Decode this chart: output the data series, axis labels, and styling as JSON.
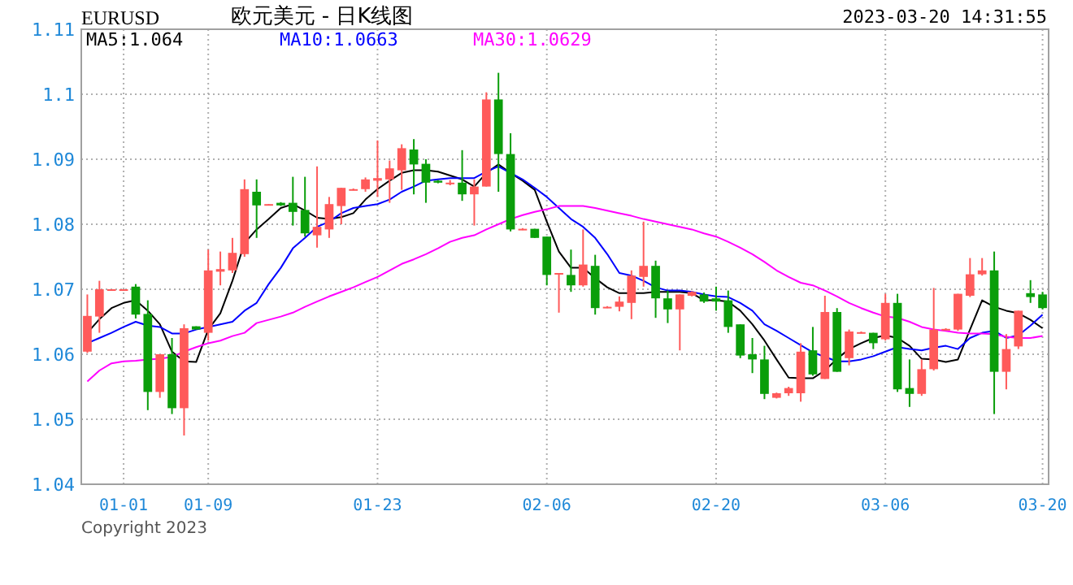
{
  "chart_data": {
    "type": "candlestick",
    "title": "欧元美元 - 日K线图",
    "annotations": [
      "EURUSD",
      "2023-03-20 14:31:55",
      "Copyright 2023"
    ],
    "categories": [
      null,
      null,
      null,
      "01-01",
      null,
      null,
      null,
      null,
      null,
      null,
      "01-09",
      null,
      null,
      null,
      null,
      null,
      null,
      null,
      null,
      null,
      null,
      null,
      null,
      null,
      "01-23",
      null,
      null,
      null,
      null,
      null,
      null,
      null,
      null,
      null,
      null,
      null,
      null,
      null,
      "02-06",
      null,
      null,
      null,
      null,
      null,
      null,
      null,
      null,
      null,
      null,
      null,
      null,
      null,
      "02-20",
      null,
      null,
      null,
      null,
      null,
      null,
      null,
      null,
      null,
      null,
      null,
      null,
      null,
      "03-06",
      null,
      null,
      null,
      null,
      null,
      null,
      null,
      null,
      null,
      null,
      null,
      null,
      "03-20"
    ],
    "ohlc": [
      [
        1.0604,
        1.0692,
        1.0602,
        1.0659
      ],
      [
        1.0658,
        1.0713,
        1.0633,
        1.07
      ],
      [
        1.0699,
        1.07,
        1.0699,
        1.07
      ],
      [
        1.0699,
        1.07,
        1.0699,
        1.07
      ],
      [
        1.0704,
        1.0708,
        1.0655,
        1.0661
      ],
      [
        1.0662,
        1.0683,
        1.0514,
        1.0542
      ],
      [
        1.0542,
        1.06,
        1.0533,
        1.06
      ],
      [
        1.06,
        1.0625,
        1.0508,
        1.0517
      ],
      [
        1.0517,
        1.0646,
        1.0475,
        1.064
      ],
      [
        1.0643,
        1.0643,
        1.0638,
        1.0638
      ],
      [
        1.0633,
        1.0761,
        1.0621,
        1.0729
      ],
      [
        1.0727,
        1.0758,
        1.0706,
        1.0731
      ],
      [
        1.0729,
        1.0779,
        1.0725,
        1.0756
      ],
      [
        1.0754,
        1.0869,
        1.075,
        1.0854
      ],
      [
        1.085,
        1.0869,
        1.0779,
        1.0829
      ],
      [
        1.083,
        1.0831,
        1.0829,
        1.0831
      ],
      [
        1.0833,
        1.0834,
        1.0828,
        1.0829
      ],
      [
        1.0833,
        1.0873,
        1.0798,
        1.0819
      ],
      [
        1.0822,
        1.0873,
        1.0781,
        1.0786
      ],
      [
        1.0783,
        1.0889,
        1.0764,
        1.0796
      ],
      [
        1.0792,
        1.0842,
        1.0779,
        1.0831
      ],
      [
        1.0828,
        1.0856,
        1.08,
        1.0856
      ],
      [
        1.0853,
        1.0855,
        1.0852,
        1.0854
      ],
      [
        1.0854,
        1.0872,
        1.085,
        1.0869
      ],
      [
        1.0867,
        1.0929,
        1.0842,
        1.0871
      ],
      [
        1.0869,
        1.0898,
        1.0833,
        1.0886
      ],
      [
        1.0883,
        1.0923,
        1.0853,
        1.0917
      ],
      [
        1.0915,
        1.0931,
        1.0846,
        1.0892
      ],
      [
        1.0893,
        1.09,
        1.0833,
        1.0864
      ],
      [
        1.0867,
        1.0868,
        1.0863,
        1.0864
      ],
      [
        1.0863,
        1.0868,
        1.086,
        1.0864
      ],
      [
        1.0864,
        1.0914,
        1.0836,
        1.0846
      ],
      [
        1.0846,
        1.0869,
        1.0798,
        1.0858
      ],
      [
        1.0858,
        1.1003,
        1.0858,
        1.0992
      ],
      [
        1.0992,
        1.1033,
        1.085,
        1.0908
      ],
      [
        1.0908,
        1.094,
        1.0789,
        1.0792
      ],
      [
        1.0792,
        1.0794,
        1.0791,
        1.0793
      ],
      [
        1.0793,
        1.0793,
        1.0779,
        1.0779
      ],
      [
        1.0781,
        1.0781,
        1.0706,
        1.0722
      ],
      [
        1.0724,
        1.0725,
        1.0664,
        1.0725
      ],
      [
        1.0722,
        1.0761,
        1.0696,
        1.0706
      ],
      [
        1.0706,
        1.0792,
        1.0704,
        1.0738
      ],
      [
        1.0736,
        1.0753,
        1.0661,
        1.0671
      ],
      [
        1.0672,
        1.0674,
        1.0671,
        1.0673
      ],
      [
        1.0673,
        1.0689,
        1.0666,
        1.0681
      ],
      [
        1.0679,
        1.0729,
        1.0654,
        1.0721
      ],
      [
        1.0719,
        1.0804,
        1.0704,
        1.0736
      ],
      [
        1.0736,
        1.0744,
        1.0656,
        1.0686
      ],
      [
        1.0686,
        1.0698,
        1.0648,
        1.0669
      ],
      [
        1.0669,
        1.0692,
        1.0606,
        1.0692
      ],
      [
        1.069,
        1.0697,
        1.0689,
        1.0696
      ],
      [
        1.0692,
        1.0695,
        1.0679,
        1.0681
      ],
      [
        1.0686,
        1.0704,
        1.0667,
        1.0681
      ],
      [
        1.0683,
        1.0698,
        1.0633,
        1.0642
      ],
      [
        1.0646,
        1.0646,
        1.0594,
        1.0598
      ],
      [
        1.06,
        1.0625,
        1.0571,
        1.0592
      ],
      [
        1.0592,
        1.0613,
        1.0531,
        1.0539
      ],
      [
        1.0533,
        1.0541,
        1.0532,
        1.054
      ],
      [
        1.054,
        1.055,
        1.0536,
        1.0548
      ],
      [
        1.054,
        1.0617,
        1.0527,
        1.0604
      ],
      [
        1.0606,
        1.0642,
        1.0567,
        1.0569
      ],
      [
        1.0562,
        1.069,
        1.0562,
        1.0665
      ],
      [
        1.0665,
        1.0671,
        1.0573,
        1.0573
      ],
      [
        1.0594,
        1.0638,
        1.0583,
        1.0635
      ],
      [
        1.0633,
        1.0635,
        1.0632,
        1.0634
      ],
      [
        1.0633,
        1.0633,
        1.0608,
        1.0617
      ],
      [
        1.0623,
        1.0693,
        1.0621,
        1.0679
      ],
      [
        1.0679,
        1.0693,
        1.0542,
        1.0546
      ],
      [
        1.0548,
        1.0592,
        1.0519,
        1.0539
      ],
      [
        1.0539,
        1.0592,
        1.0536,
        1.0577
      ],
      [
        1.0577,
        1.0702,
        1.0575,
        1.0638
      ],
      [
        1.0638,
        1.064,
        1.0637,
        1.0639
      ],
      [
        1.0638,
        1.0693,
        1.0636,
        1.0693
      ],
      [
        1.069,
        1.0748,
        1.0688,
        1.0723
      ],
      [
        1.0723,
        1.0748,
        1.0721,
        1.0729
      ],
      [
        1.0729,
        1.0758,
        1.0508,
        1.0573
      ],
      [
        1.0573,
        1.0631,
        1.0546,
        1.0608
      ],
      [
        1.0612,
        1.0667,
        1.0608,
        1.0667
      ],
      [
        1.0694,
        1.0714,
        1.0679,
        1.0688
      ],
      [
        1.0692,
        1.0696,
        1.0669,
        1.0671
      ]
    ],
    "colors": [
      "#ff5a5a",
      "#ff5a5a",
      "#ff5a5a",
      "#ff5a5a",
      "#0a9e0a",
      "#0a9e0a",
      "#ff5a5a",
      "#0a9e0a",
      "#ff5a5a",
      "#0a9e0a",
      "#ff5a5a",
      "#ff5a5a",
      "#ff5a5a",
      "#ff5a5a",
      "#0a9e0a",
      "#ff5a5a",
      "#0a9e0a",
      "#0a9e0a",
      "#0a9e0a",
      "#ff5a5a",
      "#ff5a5a",
      "#ff5a5a",
      "#ff5a5a",
      "#ff5a5a",
      "#ff5a5a",
      "#ff5a5a",
      "#ff5a5a",
      "#0a9e0a",
      "#0a9e0a",
      "#0a9e0a",
      "#ff5a5a",
      "#0a9e0a",
      "#ff5a5a",
      "#ff5a5a",
      "#0a9e0a",
      "#0a9e0a",
      "#ff5a5a",
      "#0a9e0a",
      "#0a9e0a",
      "#ff5a5a",
      "#0a9e0a",
      "#ff5a5a",
      "#0a9e0a",
      "#ff5a5a",
      "#ff5a5a",
      "#ff5a5a",
      "#ff5a5a",
      "#0a9e0a",
      "#0a9e0a",
      "#ff5a5a",
      "#ff5a5a",
      "#0a9e0a",
      "#0a9e0a",
      "#0a9e0a",
      "#0a9e0a",
      "#0a9e0a",
      "#0a9e0a",
      "#ff5a5a",
      "#ff5a5a",
      "#ff5a5a",
      "#0a9e0a",
      "#ff5a5a",
      "#0a9e0a",
      "#ff5a5a",
      "#ff5a5a",
      "#0a9e0a",
      "#ff5a5a",
      "#0a9e0a",
      "#0a9e0a",
      "#ff5a5a",
      "#ff5a5a",
      "#ff5a5a",
      "#ff5a5a",
      "#ff5a5a",
      "#ff5a5a",
      "#0a9e0a",
      "#ff5a5a",
      "#ff5a5a",
      "#0a9e0a",
      "#0a9e0a"
    ],
    "series": [
      {
        "type": "line",
        "name": "MA5:1.064",
        "color": "#000000",
        "values": [
          1.0633,
          1.0654,
          1.0671,
          1.0679,
          1.0683,
          1.0667,
          1.0646,
          1.0604,
          1.0589,
          1.0588,
          1.0638,
          1.0663,
          1.0713,
          1.0771,
          1.0792,
          1.0808,
          1.0825,
          1.0831,
          1.0821,
          1.081,
          1.0808,
          1.0811,
          1.0817,
          1.0838,
          1.0854,
          1.0867,
          1.0879,
          1.0883,
          1.0883,
          1.0881,
          1.0875,
          1.0869,
          1.0858,
          1.0879,
          1.0892,
          1.0879,
          1.0867,
          1.0853,
          1.0804,
          1.0758,
          1.0733,
          1.0733,
          1.0717,
          1.0703,
          1.0694,
          1.0694,
          1.0694,
          1.0696,
          1.0696,
          1.0696,
          1.0694,
          1.0683,
          1.0683,
          1.0681,
          1.0667,
          1.0646,
          1.0621,
          1.0592,
          1.0564,
          1.0563,
          1.0563,
          1.0575,
          1.0593,
          1.0608,
          1.0617,
          1.0625,
          1.0629,
          1.0625,
          1.0613,
          1.0593,
          1.0592,
          1.0588,
          1.0592,
          1.0638,
          1.0683,
          1.0673,
          1.0667,
          1.0663,
          1.0653,
          1.064
        ]
      },
      {
        "type": "line",
        "name": "MA10:1.0663",
        "color": "#0000ff",
        "values": [
          1.0617,
          1.0625,
          1.0633,
          1.0642,
          1.065,
          1.0644,
          1.0642,
          1.0632,
          1.0632,
          1.0638,
          1.0642,
          1.0646,
          1.065,
          1.0667,
          1.0679,
          1.0708,
          1.0733,
          1.0763,
          1.0779,
          1.0796,
          1.0804,
          1.0817,
          1.0825,
          1.0828,
          1.0831,
          1.0838,
          1.085,
          1.0858,
          1.0867,
          1.0869,
          1.0871,
          1.0871,
          1.0871,
          1.0881,
          1.0889,
          1.0879,
          1.0869,
          1.0856,
          1.0842,
          1.0825,
          1.0808,
          1.0796,
          1.0779,
          1.0754,
          1.0725,
          1.0721,
          1.0713,
          1.0703,
          1.0698,
          1.0698,
          1.0696,
          1.0692,
          1.0689,
          1.0688,
          1.0679,
          1.0667,
          1.0646,
          1.0636,
          1.0625,
          1.0614,
          1.0603,
          1.0596,
          1.0589,
          1.0589,
          1.0592,
          1.0597,
          1.0604,
          1.0611,
          1.0608,
          1.0606,
          1.061,
          1.0613,
          1.0608,
          1.0625,
          1.0633,
          1.0636,
          1.0625,
          1.0629,
          1.0644,
          1.0661
        ]
      },
      {
        "type": "line",
        "name": "MA30:1.0629",
        "color": "#ff00ff",
        "values": [
          1.0558,
          1.0575,
          1.0586,
          1.0589,
          1.059,
          1.0592,
          1.0593,
          1.0596,
          1.0604,
          1.0611,
          1.0617,
          1.0621,
          1.0628,
          1.0633,
          1.0648,
          1.0653,
          1.0658,
          1.0664,
          1.0673,
          1.0681,
          1.0689,
          1.0696,
          1.0703,
          1.0711,
          1.0719,
          1.0729,
          1.0739,
          1.0746,
          1.0754,
          1.0763,
          1.0773,
          1.0779,
          1.0783,
          1.0792,
          1.08,
          1.0808,
          1.0814,
          1.0819,
          1.0823,
          1.0828,
          1.0828,
          1.0828,
          1.0825,
          1.0821,
          1.0817,
          1.0813,
          1.0808,
          1.0804,
          1.08,
          1.0796,
          1.0792,
          1.0786,
          1.0781,
          1.0773,
          1.0764,
          1.0754,
          1.0742,
          1.0729,
          1.0719,
          1.071,
          1.0706,
          1.0698,
          1.0689,
          1.0679,
          1.0671,
          1.0664,
          1.0658,
          1.0656,
          1.065,
          1.0642,
          1.0638,
          1.0636,
          1.0633,
          1.0632,
          1.0632,
          1.0631,
          1.0627,
          1.0625,
          1.0625,
          1.0628
        ]
      }
    ],
    "ylim": [
      1.04,
      1.11
    ],
    "yticks": [
      1.04,
      1.05,
      1.06,
      1.07,
      1.08,
      1.09,
      1.1,
      1.11
    ],
    "grid": true,
    "legend": "top left"
  }
}
